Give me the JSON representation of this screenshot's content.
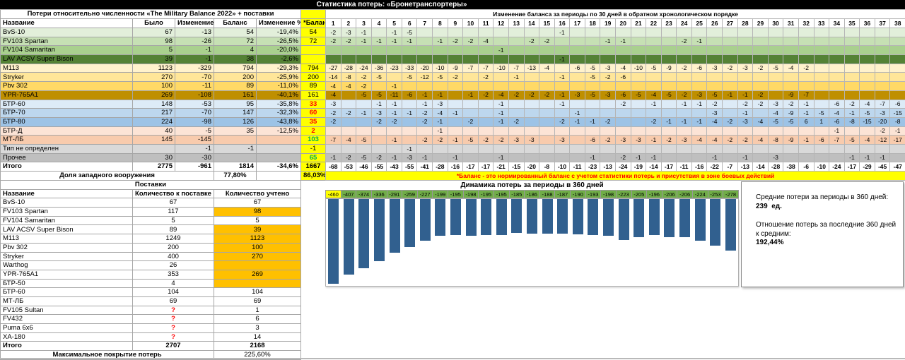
{
  "title": "Статистика потерь: «Бронетранспортеры»",
  "losses_table": {
    "title": "Потери относительно численности «The Military Balance 2022» + поставки",
    "headers": [
      "Название",
      "Было",
      "Изменение",
      "Баланс",
      "Изменение %"
    ],
    "balance_header": "*Баланс",
    "share_row": {
      "label": "Доля западного вооружения",
      "value": "77,80%",
      "nbal": "86,03%"
    }
  },
  "periods_grid": {
    "title": "Изменение баланса за периоды по 30 дней в обратном хронологическом порядке",
    "columns": [
      "1",
      "2",
      "3",
      "4",
      "5",
      "6",
      "7",
      "8",
      "9",
      "10",
      "11",
      "12",
      "13",
      "14",
      "15",
      "16",
      "17",
      "18",
      "19",
      "20",
      "21",
      "22",
      "23",
      "24",
      "25",
      "26",
      "27",
      "28",
      "29",
      "30",
      "31",
      "32",
      "33",
      "34",
      "35",
      "36",
      "37",
      "38"
    ],
    "note": "*Баланс - это нормированный баланс с учетом статистики потерь и присутствия в зоне боевых действий"
  },
  "rows": [
    {
      "name": "BvS-10",
      "was": "67",
      "change": "-13",
      "balance": "54",
      "pct": "-19,4%",
      "nbal": "54",
      "nbal_color": "#000000",
      "bg": "#E2EFDA",
      "cells": [
        "-2",
        "-3",
        "-1",
        "",
        "-1",
        "-5",
        "",
        "",
        "",
        "",
        "",
        "",
        "",
        "",
        "",
        "-1",
        "",
        "",
        "",
        "",
        "",
        "",
        "",
        "",
        "",
        "",
        "",
        "",
        "",
        "",
        "",
        "",
        "",
        "",
        "",
        "",
        "",
        ""
      ]
    },
    {
      "name": "FV103 Spartan",
      "was": "98",
      "change": "-26",
      "balance": "72",
      "pct": "-26,5%",
      "nbal": "72",
      "nbal_color": "#000000",
      "bg": "#C6E0B4",
      "cells": [
        "-2",
        "-2",
        "-1",
        "-1",
        "-1",
        "-1",
        "",
        "-1",
        "-2",
        "-2",
        "-4",
        "",
        "",
        "-2",
        "-2",
        "",
        "",
        "",
        "-1",
        "-1",
        "",
        "",
        "",
        "-2",
        "-1",
        "",
        "",
        "",
        "",
        "",
        "",
        "",
        "",
        "",
        "",
        "",
        "",
        ""
      ]
    },
    {
      "name": "FV104 Samaritan",
      "was": "5",
      "change": "-1",
      "balance": "4",
      "pct": "-20,0%",
      "nbal": "",
      "nbal_color": "#000000",
      "bg": "#A9D08E",
      "cells": [
        "",
        "",
        "",
        "",
        "",
        "",
        "",
        "",
        "",
        "",
        "",
        "-1",
        "",
        "",
        "",
        "",
        "",
        "",
        "",
        "",
        "",
        "",
        "",
        "",
        "",
        "",
        "",
        "",
        "",
        "",
        "",
        "",
        "",
        "",
        "",
        "",
        "",
        ""
      ]
    },
    {
      "name": "LAV ACSV Super Bison",
      "was": "39",
      "change": "-1",
      "balance": "38",
      "pct": "-2,6%",
      "nbal": "",
      "nbal_color": "#000000",
      "bg": "#548235",
      "cells": [
        "",
        "",
        "",
        "",
        "",
        "",
        "",
        "",
        "",
        "",
        "",
        "",
        "",
        "",
        "",
        "-1",
        "",
        "",
        "",
        "",
        "",
        "",
        "",
        "",
        "",
        "",
        "",
        "",
        "",
        "",
        "",
        "",
        "",
        "",
        "",
        "",
        "",
        ""
      ]
    },
    {
      "name": "M113",
      "was": "1123",
      "change": "-329",
      "balance": "794",
      "pct": "-29,3%",
      "nbal": "794",
      "nbal_color": "#000000",
      "bg": "#FFF2CC",
      "cells": [
        "-27",
        "-28",
        "-24",
        "-36",
        "-23",
        "-33",
        "-20",
        "-10",
        "-9",
        "-7",
        "-7",
        "-10",
        "-7",
        "-13",
        "-4",
        "",
        "-6",
        "-5",
        "-3",
        "-4",
        "-10",
        "-5",
        "-9",
        "-2",
        "-6",
        "-3",
        "-2",
        "-3",
        "-2",
        "-5",
        "-4",
        "-2",
        "",
        "",
        "",
        "",
        "",
        ""
      ]
    },
    {
      "name": "Stryker",
      "was": "270",
      "change": "-70",
      "balance": "200",
      "pct": "-25,9%",
      "nbal": "200",
      "nbal_color": "#000000",
      "bg": "#FFE699",
      "cells": [
        "-14",
        "-8",
        "-2",
        "-5",
        "",
        "-5",
        "-12",
        "-5",
        "-2",
        "",
        "-2",
        "",
        "-1",
        "",
        "",
        "-1",
        "",
        "-5",
        "-2",
        "-6",
        "",
        "",
        "",
        "",
        "",
        "",
        "",
        "",
        "",
        "",
        "",
        "",
        "",
        "",
        "",
        "",
        "",
        ""
      ]
    },
    {
      "name": "Pbv 302",
      "was": "100",
      "change": "-11",
      "balance": "89",
      "pct": "-11,0%",
      "nbal": "89",
      "nbal_color": "#000000",
      "bg": "#FFD966",
      "cells": [
        "-4",
        "-4",
        "-2",
        "",
        "-1",
        "",
        "",
        "",
        "",
        "",
        "",
        "",
        "",
        "",
        "",
        "",
        "",
        "",
        "",
        "",
        "",
        "",
        "",
        "",
        "",
        "",
        "",
        "",
        "",
        "",
        "",
        "",
        "",
        "",
        "",
        "",
        "",
        ""
      ]
    },
    {
      "name": "YPR-765A1",
      "was": "269",
      "change": "-108",
      "balance": "161",
      "pct": "-40,1%",
      "nbal": "161",
      "nbal_color": "#000000",
      "bg": "#BF8F00",
      "cells": [
        "-4",
        "",
        "-5",
        "-5",
        "-11",
        "-6",
        "-1",
        "-1",
        "",
        "-1",
        "-2",
        "-4",
        "-2",
        "-2",
        "-2",
        "-1",
        "-3",
        "-5",
        "-3",
        "-6",
        "-5",
        "-4",
        "-5",
        "-2",
        "-3",
        "-5",
        "-1",
        "-1",
        "-2",
        "",
        "-9",
        "-7",
        "",
        "",
        "",
        "",
        "",
        ""
      ]
    },
    {
      "name": "БТР-60",
      "was": "148",
      "change": "-53",
      "balance": "95",
      "pct": "-35,8%",
      "nbal": "33",
      "nbal_color": "#FF0000",
      "bg": "#DDEBF7",
      "cells": [
        "-3",
        "",
        "",
        "-1",
        "-1",
        "",
        "-1",
        "-3",
        "",
        "",
        "",
        "-1",
        "",
        "",
        "",
        "-1",
        "",
        "",
        "",
        "-2",
        "",
        "-1",
        "",
        "-1",
        "-1",
        "-2",
        "",
        "-2",
        "-2",
        "-3",
        "-2",
        "-1",
        "",
        "-6",
        "-2",
        "-4",
        "-7",
        "-6"
      ]
    },
    {
      "name": "БТР-70",
      "was": "217",
      "change": "-70",
      "balance": "147",
      "pct": "-32,3%",
      "nbal": "60",
      "nbal_color": "#FF0000",
      "bg": "#BDD7EE",
      "cells": [
        "-2",
        "-2",
        "-1",
        "-3",
        "-1",
        "-1",
        "-2",
        "-4",
        "-1",
        "",
        "",
        "-1",
        "",
        "",
        "",
        "",
        "-1",
        "",
        "",
        "",
        "",
        "",
        "",
        "",
        "",
        "-3",
        "",
        "-1",
        "",
        "-4",
        "-9",
        "-1",
        "-5",
        "-4",
        "-1",
        "-5",
        "-3",
        "-15"
      ]
    },
    {
      "name": "БТР-80",
      "was": "224",
      "change": "-98",
      "balance": "126",
      "pct": "-43,8%",
      "nbal": "35",
      "nbal_color": "#FF0000",
      "bg": "#9DC3E6",
      "cells": [
        "-2",
        "",
        "",
        "-2",
        "-2",
        "",
        "-2",
        "-1",
        "",
        "-2",
        "",
        "-1",
        "-2",
        "",
        "",
        "-2",
        "-1",
        "-1",
        "-2",
        "",
        "",
        "-2",
        "-1",
        "-1",
        "-1",
        "-4",
        "-2",
        "-3",
        "-4",
        "-5",
        "-5",
        "6",
        "1",
        "-6",
        "-8",
        "-15",
        "-20",
        "-8"
      ]
    },
    {
      "name": "БТР-Д",
      "was": "40",
      "change": "-5",
      "balance": "35",
      "pct": "-12,5%",
      "nbal": "2",
      "nbal_color": "#FF0000",
      "bg": "#FCE4D6",
      "cells": [
        "",
        "",
        "",
        "",
        "",
        "",
        "",
        "-1",
        "",
        "",
        "",
        "",
        "",
        "",
        "",
        "",
        "",
        "",
        "",
        "",
        "",
        "",
        "",
        "",
        "",
        "",
        "",
        "",
        "",
        "",
        "",
        "",
        "",
        "-1",
        "",
        "",
        "-2",
        "-1"
      ]
    },
    {
      "name": "МТ-ЛБ",
      "was": "145",
      "change": "-145",
      "balance": "",
      "pct": "",
      "nbal": "103",
      "nbal_color": "#00B050",
      "bg": "#F8CBAD",
      "cells": [
        "-7",
        "-4",
        "-5",
        "",
        "-1",
        "",
        "-2",
        "-2",
        "-1",
        "-5",
        "-2",
        "-2",
        "-3",
        "-3",
        "",
        "-3",
        "",
        "-6",
        "-2",
        "-3",
        "-3",
        "-1",
        "-2",
        "-3",
        "-4",
        "-4",
        "-2",
        "-2",
        "-4",
        "-8",
        "-9",
        "-1",
        "-6",
        "-7",
        "-5",
        "-4",
        "-12",
        "-17"
      ]
    },
    {
      "name": "Тип не определен",
      "was": "",
      "change": "-1",
      "balance": "-1",
      "pct": "",
      "nbal": "-1",
      "nbal_color": "#000000",
      "bg": "#D9D9D9",
      "cells": [
        "",
        "",
        "",
        "",
        "",
        "-1",
        "",
        "",
        "",
        "",
        "",
        "",
        "",
        "",
        "",
        "",
        "",
        "",
        "",
        "",
        "",
        "",
        "",
        "",
        "",
        "",
        "",
        "",
        "",
        "",
        "",
        "",
        "",
        "",
        "",
        "",
        "",
        ""
      ]
    },
    {
      "name": "Прочее",
      "was": "30",
      "change": "-30",
      "balance": "",
      "pct": "",
      "nbal": "65",
      "nbal_color": "#00B050",
      "bg": "#BFBFBF",
      "cells": [
        "-1",
        "-2",
        "-5",
        "-2",
        "-1",
        "-3",
        "-1",
        "",
        "-1",
        "",
        "",
        "-1",
        "",
        "",
        "",
        "",
        "",
        "-1",
        "",
        "-2",
        "-1",
        "-1",
        "",
        "",
        "",
        "-1",
        "",
        "-1",
        "",
        "-3",
        "",
        "",
        "",
        "",
        "-1",
        "-1",
        "-1",
        ""
      ]
    }
  ],
  "total_row": {
    "name": "Итого",
    "was": "2775",
    "change": "-961",
    "balance": "1814",
    "pct": "-34,6%",
    "nbal": "1667",
    "bg": "#FFFFFF",
    "cells": [
      "-68",
      "-53",
      "-46",
      "-55",
      "-43",
      "-55",
      "-41",
      "-28",
      "-16",
      "-17",
      "-17",
      "-21",
      "-15",
      "-20",
      "-8",
      "-10",
      "-11",
      "-23",
      "-13",
      "-24",
      "-19",
      "-14",
      "-17",
      "-11",
      "-16",
      "-22",
      "-7",
      "-13",
      "-14",
      "-28",
      "-38",
      "-6",
      "-10",
      "-24",
      "-17",
      "-29",
      "-45",
      "-47"
    ]
  },
  "supplies_table": {
    "title": "Поставки",
    "headers": [
      "Название",
      "Количество к поставке",
      "Количество учтено"
    ],
    "rows": [
      {
        "name": "BvS-10",
        "to_supply": "67",
        "counted": "67",
        "hl": false
      },
      {
        "name": "FV103 Spartan",
        "to_supply": "117",
        "counted": "98",
        "hl": true
      },
      {
        "name": "FV104 Samaritan",
        "to_supply": "5",
        "counted": "5",
        "hl": false
      },
      {
        "name": "LAV ACSV Super Bison",
        "to_supply": "89",
        "counted": "39",
        "hl": true
      },
      {
        "name": "M113",
        "to_supply": "1249",
        "counted": "1123",
        "hl": true
      },
      {
        "name": "Pbv 302",
        "to_supply": "200",
        "counted": "100",
        "hl": true
      },
      {
        "name": "Stryker",
        "to_supply": "400",
        "counted": "270",
        "hl": true
      },
      {
        "name": "Warthog",
        "to_supply": "26",
        "counted": "",
        "hl": true
      },
      {
        "name": "YPR-765A1",
        "to_supply": "353",
        "counted": "269",
        "hl": true
      },
      {
        "name": "БТР-50",
        "to_supply": "4",
        "counted": "",
        "hl": true
      },
      {
        "name": "БТР-60",
        "to_supply": "104",
        "counted": "104",
        "hl": false
      },
      {
        "name": "МТ-ЛБ",
        "to_supply": "69",
        "counted": "69",
        "hl": false
      },
      {
        "name": "FV105 Sultan",
        "to_supply": "?",
        "counted": "1",
        "hl": false
      },
      {
        "name": "FV432",
        "to_supply": "?",
        "counted": "6",
        "hl": false
      },
      {
        "name": "Puma 6x6",
        "to_supply": "?",
        "counted": "3",
        "hl": false
      },
      {
        "name": "XA-180",
        "to_supply": "?",
        "counted": "14",
        "hl": false
      }
    ],
    "total": {
      "name": "Итого",
      "to_supply": "2707",
      "counted": "2168"
    },
    "coverage_row": {
      "label": "Максимальное покрытие потерь",
      "value": "225,60%"
    }
  },
  "chart_data": {
    "type": "bar",
    "title": "Динамика потерь за периоды в 360 дней",
    "values": [
      -460,
      -407,
      -374,
      -336,
      -291,
      -259,
      -227,
      -199,
      -195,
      -198,
      -195,
      -195,
      -185,
      -186,
      -188,
      -187,
      -190,
      -193,
      -198,
      -223,
      -205,
      -196,
      -206,
      -206,
      -224,
      -253,
      -278
    ],
    "ylim": [
      -470,
      0
    ],
    "bar_color": "#31608F",
    "label_bg": "#70AD47",
    "first_label_bg": "#FFFF00",
    "orientation": "columns hanging down from zero line, labels above"
  },
  "stats_panel": {
    "line1": "Средние потери за периоды в 360 дней:",
    "line2": "239  ед.",
    "line3": "Отношение потерь за последние 360 дней",
    "line4": "к средним:",
    "line5": "192,44%"
  },
  "colors": {
    "highlight_orange": "#FFC000",
    "yellow": "#FFFF00",
    "negative_red": "#FF0000",
    "positive_green": "#00B050"
  }
}
